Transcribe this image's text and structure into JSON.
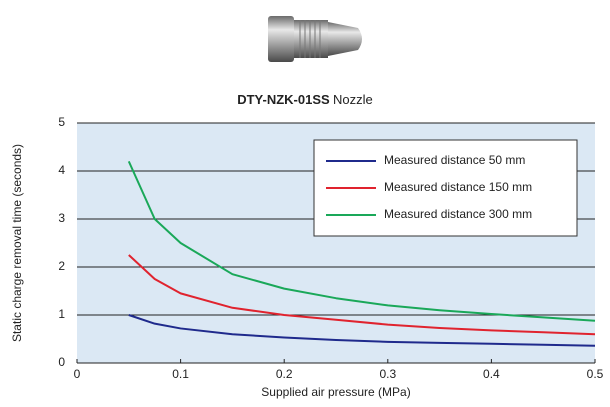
{
  "chart_data": {
    "type": "line",
    "title": [
      "DTY-NZK-01SS",
      "Nozzle"
    ],
    "x_label": "Supplied air pressure (MPa)",
    "y_label": "Static charge removal time (seconds)",
    "x": [
      0.05,
      0.075,
      0.1,
      0.15,
      0.2,
      0.25,
      0.3,
      0.35,
      0.4,
      0.45,
      0.5
    ],
    "series": [
      {
        "name": "Measured distance 50 mm",
        "color": "#1f2a8c",
        "values": [
          1.0,
          0.82,
          0.72,
          0.6,
          0.53,
          0.48,
          0.44,
          0.42,
          0.4,
          0.38,
          0.36
        ]
      },
      {
        "name": "Measured distance 150 mm",
        "color": "#e0232e",
        "values": [
          2.25,
          1.75,
          1.45,
          1.15,
          1.0,
          0.9,
          0.8,
          0.73,
          0.68,
          0.64,
          0.6
        ]
      },
      {
        "name": "Measured distance 300 mm",
        "color": "#1aa859",
        "values": [
          4.2,
          3.0,
          2.5,
          1.85,
          1.55,
          1.35,
          1.2,
          1.1,
          1.02,
          0.95,
          0.88
        ]
      }
    ],
    "xlim": [
      0,
      0.5
    ],
    "xticks": [
      0,
      0.1,
      0.2,
      0.3,
      0.4,
      0.5
    ],
    "ylim": [
      0,
      5
    ],
    "yticks": [
      0,
      1,
      2,
      3,
      4,
      5
    ],
    "grid": true,
    "legend": "top-right"
  }
}
